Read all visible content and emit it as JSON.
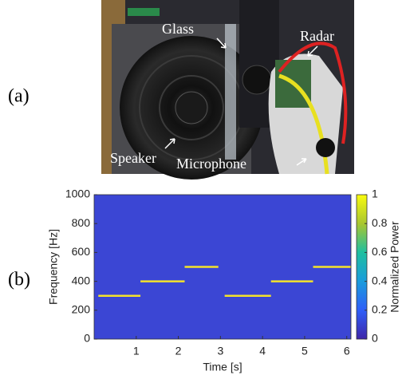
{
  "panel_labels": [
    "(a)",
    "(b)"
  ],
  "photo": {
    "annotations": [
      "Glass",
      "Radar",
      "Speaker",
      "Microphone"
    ]
  },
  "chart_data": {
    "type": "spectrogram",
    "xlabel": "Time [s]",
    "ylabel": "Frequency [Hz]",
    "xlim": [
      0,
      6.1
    ],
    "ylim": [
      0,
      1000
    ],
    "xticks": [
      1,
      2,
      3,
      4,
      5,
      6
    ],
    "yticks": [
      0,
      200,
      400,
      600,
      800,
      1000
    ],
    "background_color": "#3b46d4",
    "tone_color": "#f4e22a",
    "tones": [
      {
        "start": 0.1,
        "end": 1.1,
        "frequency": 300
      },
      {
        "start": 1.1,
        "end": 2.15,
        "frequency": 400
      },
      {
        "start": 2.15,
        "end": 2.95,
        "frequency": 500
      },
      {
        "start": 3.1,
        "end": 4.2,
        "frequency": 300
      },
      {
        "start": 4.2,
        "end": 5.2,
        "frequency": 400
      },
      {
        "start": 5.2,
        "end": 6.1,
        "frequency": 500
      }
    ],
    "colorbar": {
      "label": "Normalized Power",
      "lim": [
        0,
        1
      ],
      "ticks": [
        0,
        0.2,
        0.4,
        0.6,
        0.8,
        1
      ]
    }
  }
}
